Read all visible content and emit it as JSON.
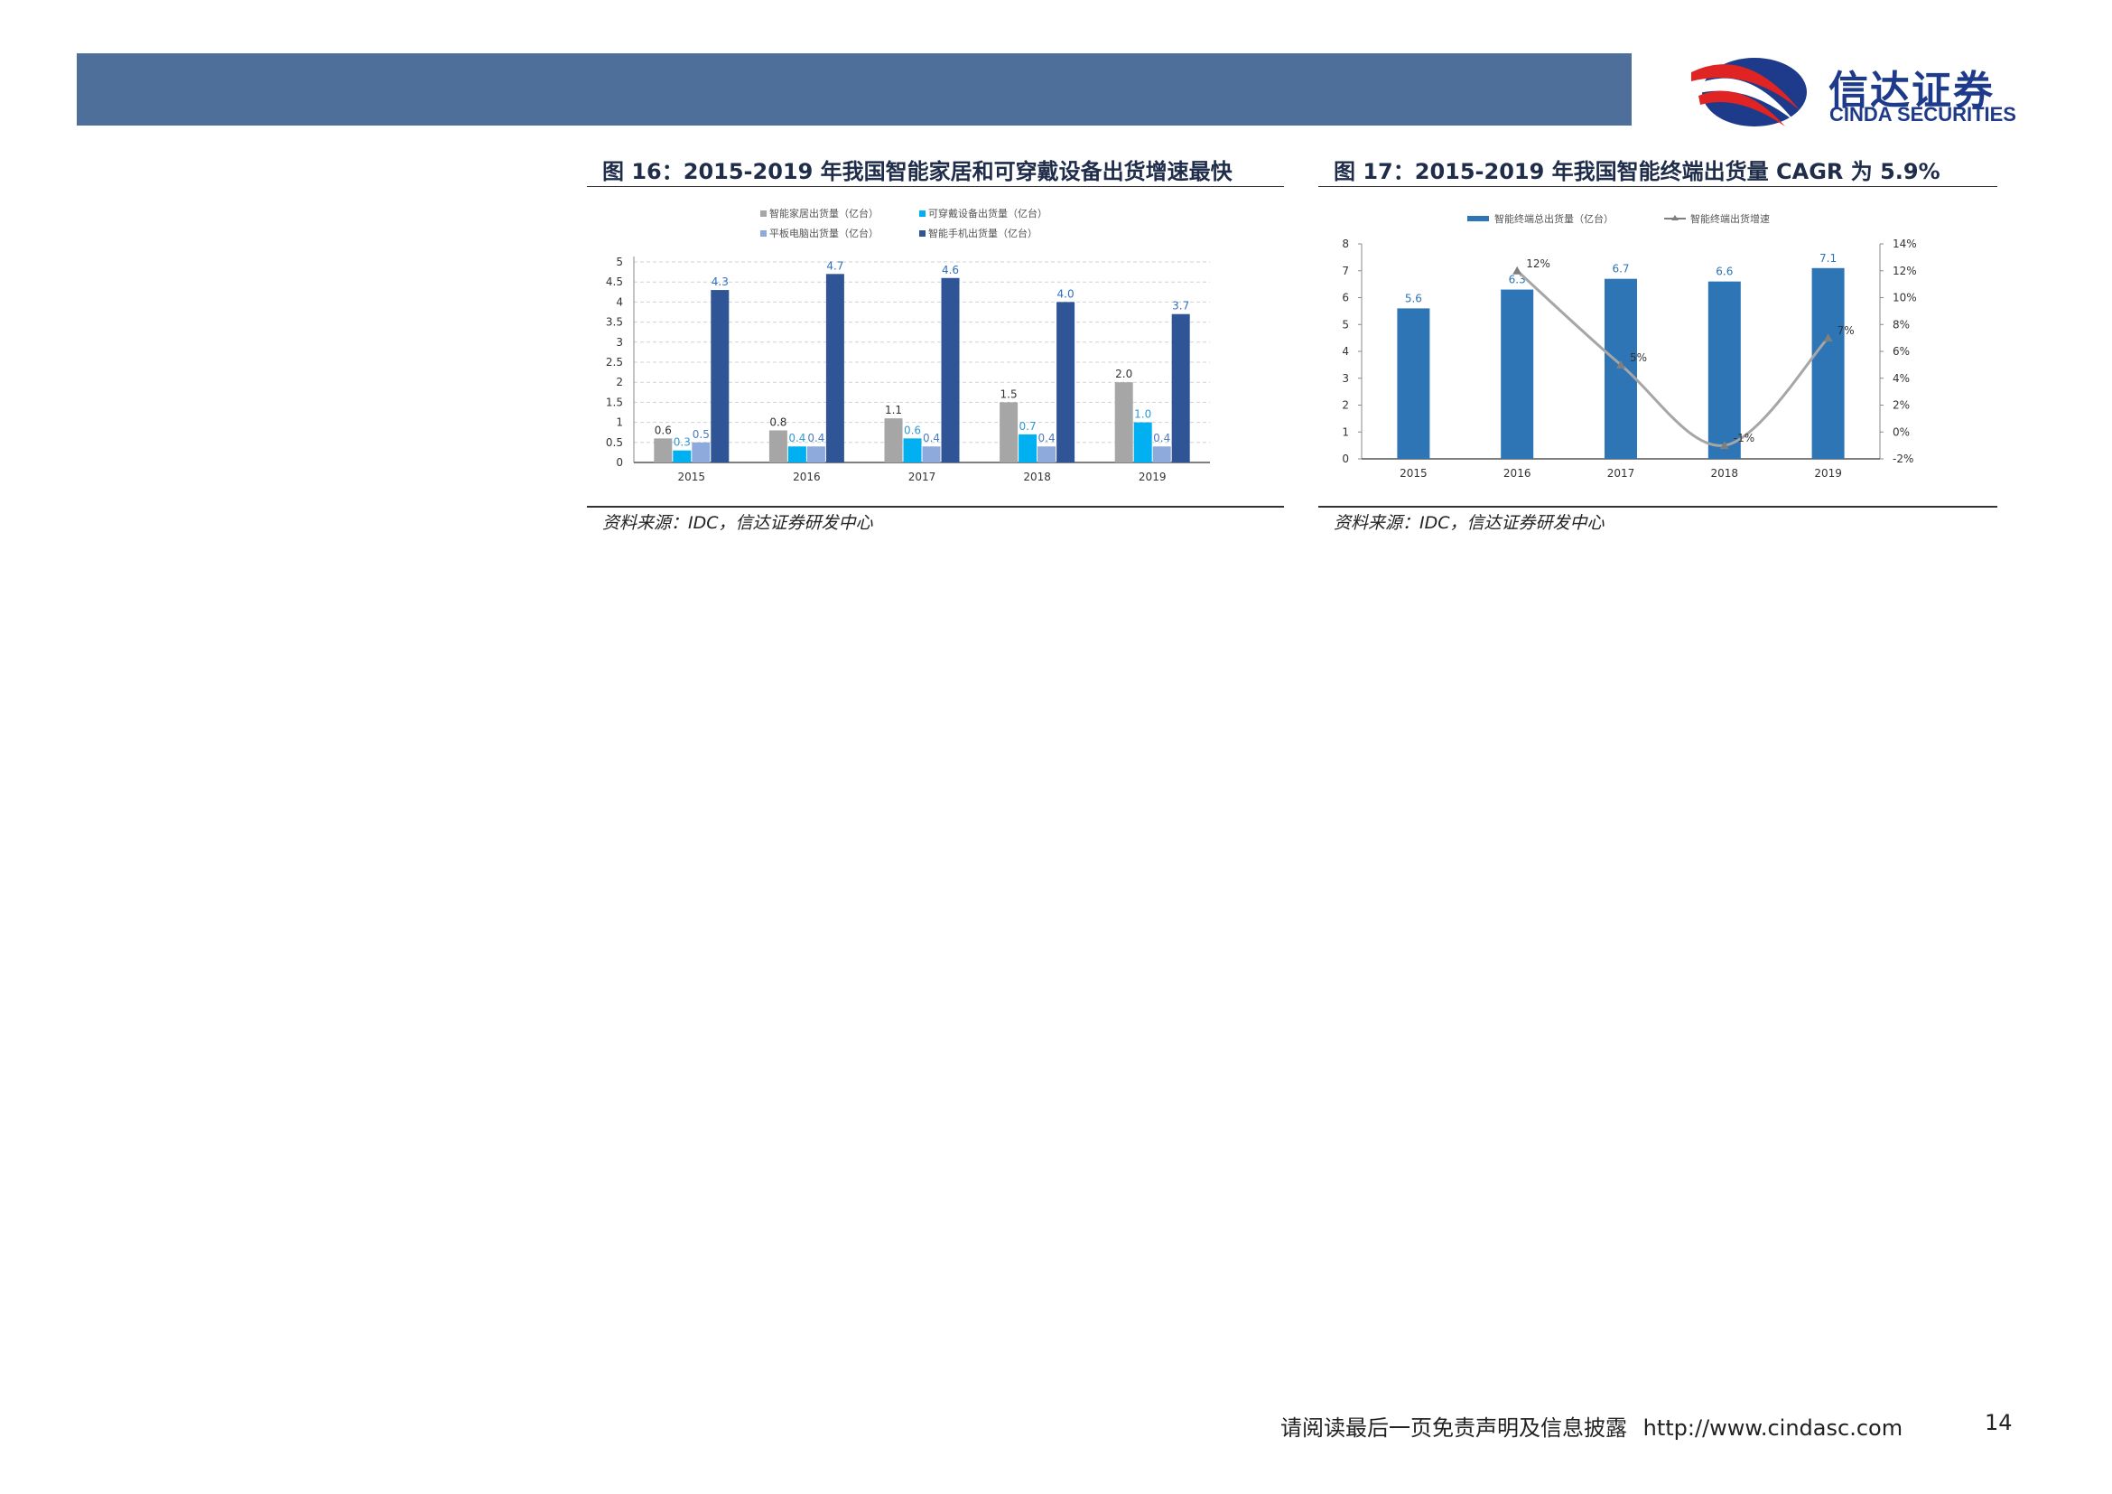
{
  "brand": {
    "name_cn": "信达证券",
    "name_en": "CINDA SECURITIES"
  },
  "figures": [
    {
      "title": "图 16：2015-2019 年我国智能家居和可穿戴设备出货增速最快",
      "source": "资料来源：IDC，信达证券研发中心"
    },
    {
      "title": "图 17：2015-2019 年我国智能终端出货量 CAGR 为 5.9%",
      "source": "资料来源：IDC，信达证券研发中心"
    }
  ],
  "chart_data": [
    {
      "type": "bar",
      "title": "",
      "categories": [
        "2015",
        "2016",
        "2017",
        "2018",
        "2019"
      ],
      "series": [
        {
          "name": "智能家居出货量（亿台）",
          "values": [
            0.6,
            0.8,
            1.1,
            1.5,
            2.0
          ],
          "color": "#a6a6a6",
          "label_color": "#333333",
          "labels": [
            "0.6",
            "0.8",
            "1.1",
            "1.5",
            "2.0"
          ]
        },
        {
          "name": "可穿戴设备出货量（亿台）",
          "values": [
            0.3,
            0.4,
            0.6,
            0.7,
            1.0
          ],
          "color": "#00b0f0",
          "label_color": "#2e9bd6",
          "labels": [
            "0.3",
            "0.4",
            "0.6",
            "0.7",
            "1.0"
          ]
        },
        {
          "name": "平板电脑出货量（亿台）",
          "values": [
            0.5,
            0.4,
            0.4,
            0.4,
            0.4
          ],
          "color": "#8ea9db",
          "label_color": "#4a7ac0",
          "labels": [
            "0.5",
            "0.4",
            "0.4",
            "0.4",
            "0.4"
          ]
        },
        {
          "name": "智能手机出货量（亿台）",
          "values": [
            4.3,
            4.7,
            4.6,
            4.0,
            3.7
          ],
          "color": "#2f5597",
          "label_color": "#2f6fbf",
          "labels": [
            "4.3",
            "4.7",
            "4.6",
            "4.0",
            "3.7"
          ]
        }
      ],
      "ylim": [
        0,
        5
      ],
      "yticks": [
        "0",
        "0.5",
        "1",
        "1.5",
        "2",
        "2.5",
        "3",
        "3.5",
        "4",
        "4.5",
        "5"
      ],
      "grid": true,
      "legend": "top"
    },
    {
      "type": "bar+line",
      "title": "",
      "categories": [
        "2015",
        "2016",
        "2017",
        "2018",
        "2019"
      ],
      "bar_series": {
        "name": "智能终端总出货量（亿台）",
        "values": [
          5.6,
          6.3,
          6.7,
          6.6,
          7.1
        ],
        "labels": [
          "5.6",
          "6.3",
          "6.7",
          "6.6",
          "7.1"
        ],
        "color": "#2e75b6"
      },
      "line_series": {
        "name": "智能终端出货增速",
        "values": [
          null,
          12,
          5,
          -1,
          7
        ],
        "labels": [
          "",
          "12%",
          "5%",
          "-1%",
          "7%"
        ],
        "color": "#a6a6a6"
      },
      "ylim_left": [
        0,
        8
      ],
      "yticks_left": [
        "0",
        "1",
        "2",
        "3",
        "4",
        "5",
        "6",
        "7",
        "8"
      ],
      "ylim_right": [
        -2,
        14
      ],
      "yticks_right": [
        "-2%",
        "0%",
        "2%",
        "4%",
        "6%",
        "8%",
        "10%",
        "12%",
        "14%"
      ],
      "grid": false,
      "legend": "top"
    }
  ],
  "footer": {
    "disclaimer": "请阅读最后一页免责声明及信息披露",
    "url": "http://www.cindasc.com",
    "page": "14"
  }
}
